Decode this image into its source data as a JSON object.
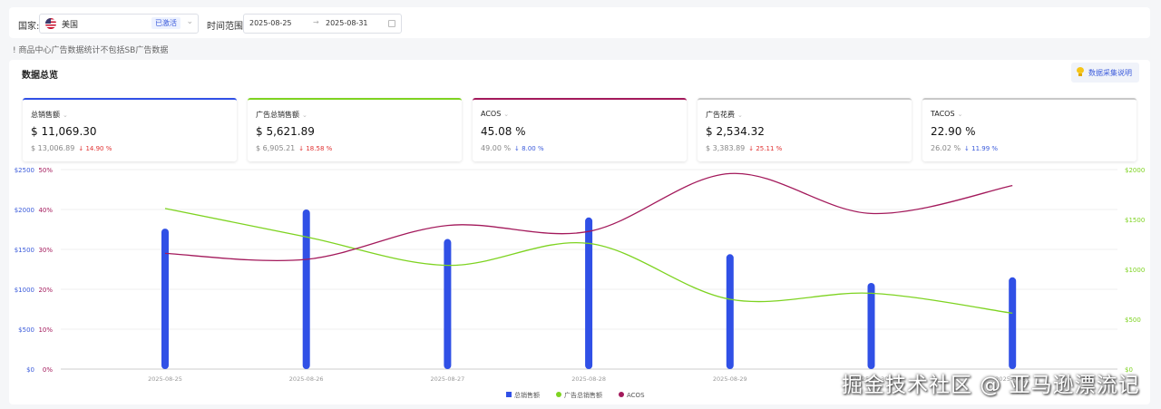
{
  "filters": {
    "country_label": "国家:",
    "country_value": "美国",
    "country_status": "已激活",
    "date_label": "时间范围:",
    "date_start": "2025-08-25",
    "date_end": "2025-08-31",
    "date_separator": "→"
  },
  "notice": "! 商品中心广告数据统计不包括SB广告数据",
  "overview": {
    "title": "数据总览",
    "help_label": "数据采集说明"
  },
  "cards": [
    {
      "label": "总销售额",
      "value": "$ 11,069.30",
      "prev": "$ 13,006.89",
      "change": "↓ 14.90 %",
      "color": "#3050e6",
      "change_color": "red"
    },
    {
      "label": "广告总销售额",
      "value": "$ 5,621.89",
      "prev": "$ 6,905.21",
      "change": "↓ 18.58 %",
      "color": "#7ed321",
      "change_color": "red"
    },
    {
      "label": "ACOS",
      "value": "45.08 %",
      "prev": "49.00 %",
      "change": "↓ 8.00 %",
      "color": "#a3195b",
      "change_color": "blue"
    },
    {
      "label": "广告花费",
      "value": "$ 2,534.32",
      "prev": "$ 3,383.89",
      "change": "↓ 25.11 %",
      "color": "#c8c8c8",
      "change_color": "red"
    },
    {
      "label": "TACOS",
      "value": "22.90 %",
      "prev": "26.02 %",
      "change": "↓ 11.99 %",
      "color": "#c8c8c8",
      "change_color": "blue"
    }
  ],
  "chart_data": {
    "type": "bar",
    "categories": [
      "2025-08-25",
      "2025-08-26",
      "2025-08-27",
      "2025-08-28",
      "2025-08-29",
      "2025-08-30",
      "2025-08-31"
    ],
    "y_left_sales": {
      "ticks": [
        "$0",
        "$500",
        "$1000",
        "$1500",
        "$2000",
        "$2500"
      ],
      "range": [
        0,
        2500
      ],
      "color": "#3b5bdb"
    },
    "y_left_acos": {
      "ticks": [
        "0%",
        "10%",
        "20%",
        "30%",
        "40%",
        "50%"
      ],
      "range": [
        0,
        50
      ],
      "color": "#a3195b"
    },
    "y_right": {
      "ticks": [
        "$0",
        "$500",
        "$1000",
        "$1500",
        "$2000"
      ],
      "range": [
        0,
        2000
      ],
      "color": "#7ed321"
    },
    "series": [
      {
        "name": "总销售额",
        "type": "bar",
        "axis": "left_sales",
        "color": "#3050e6",
        "values": [
          1760,
          2000,
          1630,
          1900,
          1440,
          1080,
          1150
        ]
      },
      {
        "name": "广告总销售额",
        "type": "line",
        "axis": "right",
        "color": "#7ed321",
        "values": [
          1610,
          null,
          1040,
          1260,
          700,
          null,
          560
        ]
      },
      {
        "name": "ACOS",
        "type": "line",
        "axis": "left_acos",
        "color": "#a3195b",
        "values": [
          29,
          27.5,
          36,
          34.5,
          49,
          39,
          46
        ]
      }
    ],
    "legend_position": "bottom-center"
  },
  "watermark": "掘金技术社区 @ 亚马逊漂流记"
}
